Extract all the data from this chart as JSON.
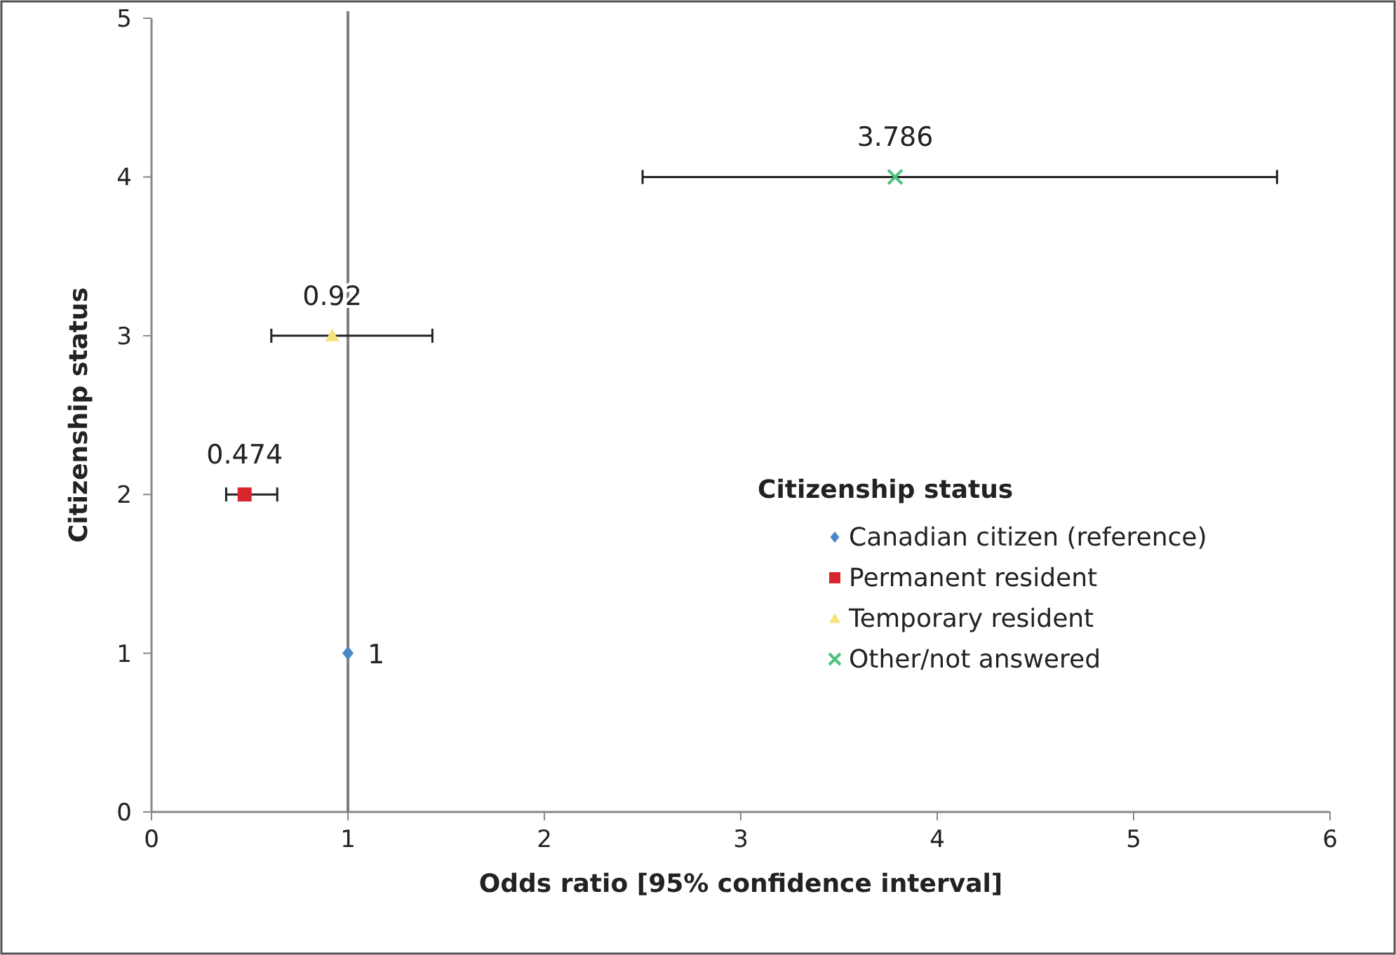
{
  "chart_data": {
    "type": "scatter",
    "xlabel": "Odds ratio [95% confidence interval]",
    "ylabel": "Citizenship status",
    "legend_title": "Citizenship status",
    "legend": "right",
    "grid": false,
    "xlim": [
      0,
      6
    ],
    "xticks": [
      0,
      1,
      2,
      3,
      4,
      5,
      6
    ],
    "ylim": [
      0,
      5
    ],
    "yticks": [
      0,
      1,
      2,
      3,
      4,
      5
    ],
    "annotations": [
      {
        "text": "1",
        "x": 1,
        "y": 1
      },
      {
        "text": "0.474",
        "x": 0.474,
        "y": 2
      },
      {
        "text": "0.92",
        "x": 0.92,
        "y": 3
      },
      {
        "text": "3.786",
        "x": 3.786,
        "y": 4
      }
    ],
    "ref_lines": [
      {
        "axis": "x",
        "value": 1,
        "color": "#7f7f7f"
      }
    ],
    "series": [
      {
        "name": "Canadian citizen (reference)",
        "color": "#4a86c8",
        "marker": "diamond",
        "x": [
          1
        ],
        "values": [
          1
        ]
      },
      {
        "name": "Permanent resident",
        "color": "#d9262e",
        "marker": "square",
        "x": [
          0.474
        ],
        "values": [
          2
        ],
        "xerrors": [
          [
            0.38,
            0.64
          ]
        ]
      },
      {
        "name": "Temporary resident",
        "color": "#f5e37a",
        "marker": "triangle",
        "x": [
          0.92
        ],
        "values": [
          3
        ],
        "xerrors": [
          [
            0.61,
            1.43
          ]
        ]
      },
      {
        "name": "Other/not answered",
        "color": "#4cc27a",
        "marker": "cross",
        "x": [
          3.786
        ],
        "values": [
          4
        ],
        "xerrors": [
          [
            2.5,
            5.73
          ]
        ]
      }
    ]
  }
}
